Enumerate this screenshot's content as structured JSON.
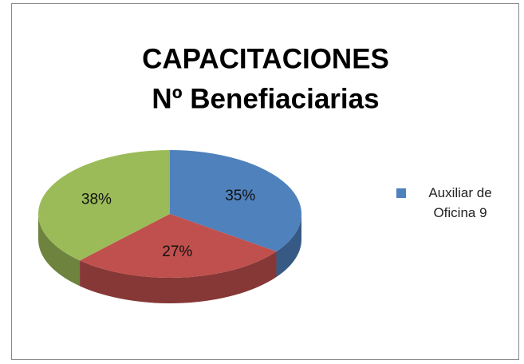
{
  "chart_data": {
    "type": "pie3d",
    "title": [
      "CAPACITACIONES",
      "Nº Benefiaciarias"
    ],
    "categories": [
      "Auxiliar de Oficina 9",
      null,
      null
    ],
    "values": [
      35,
      27,
      38
    ],
    "value_labels": [
      "35%",
      "27%",
      "38%"
    ],
    "colors": [
      "#4f81bd",
      "#c0504d",
      "#9bbb59"
    ],
    "legend": "right"
  }
}
